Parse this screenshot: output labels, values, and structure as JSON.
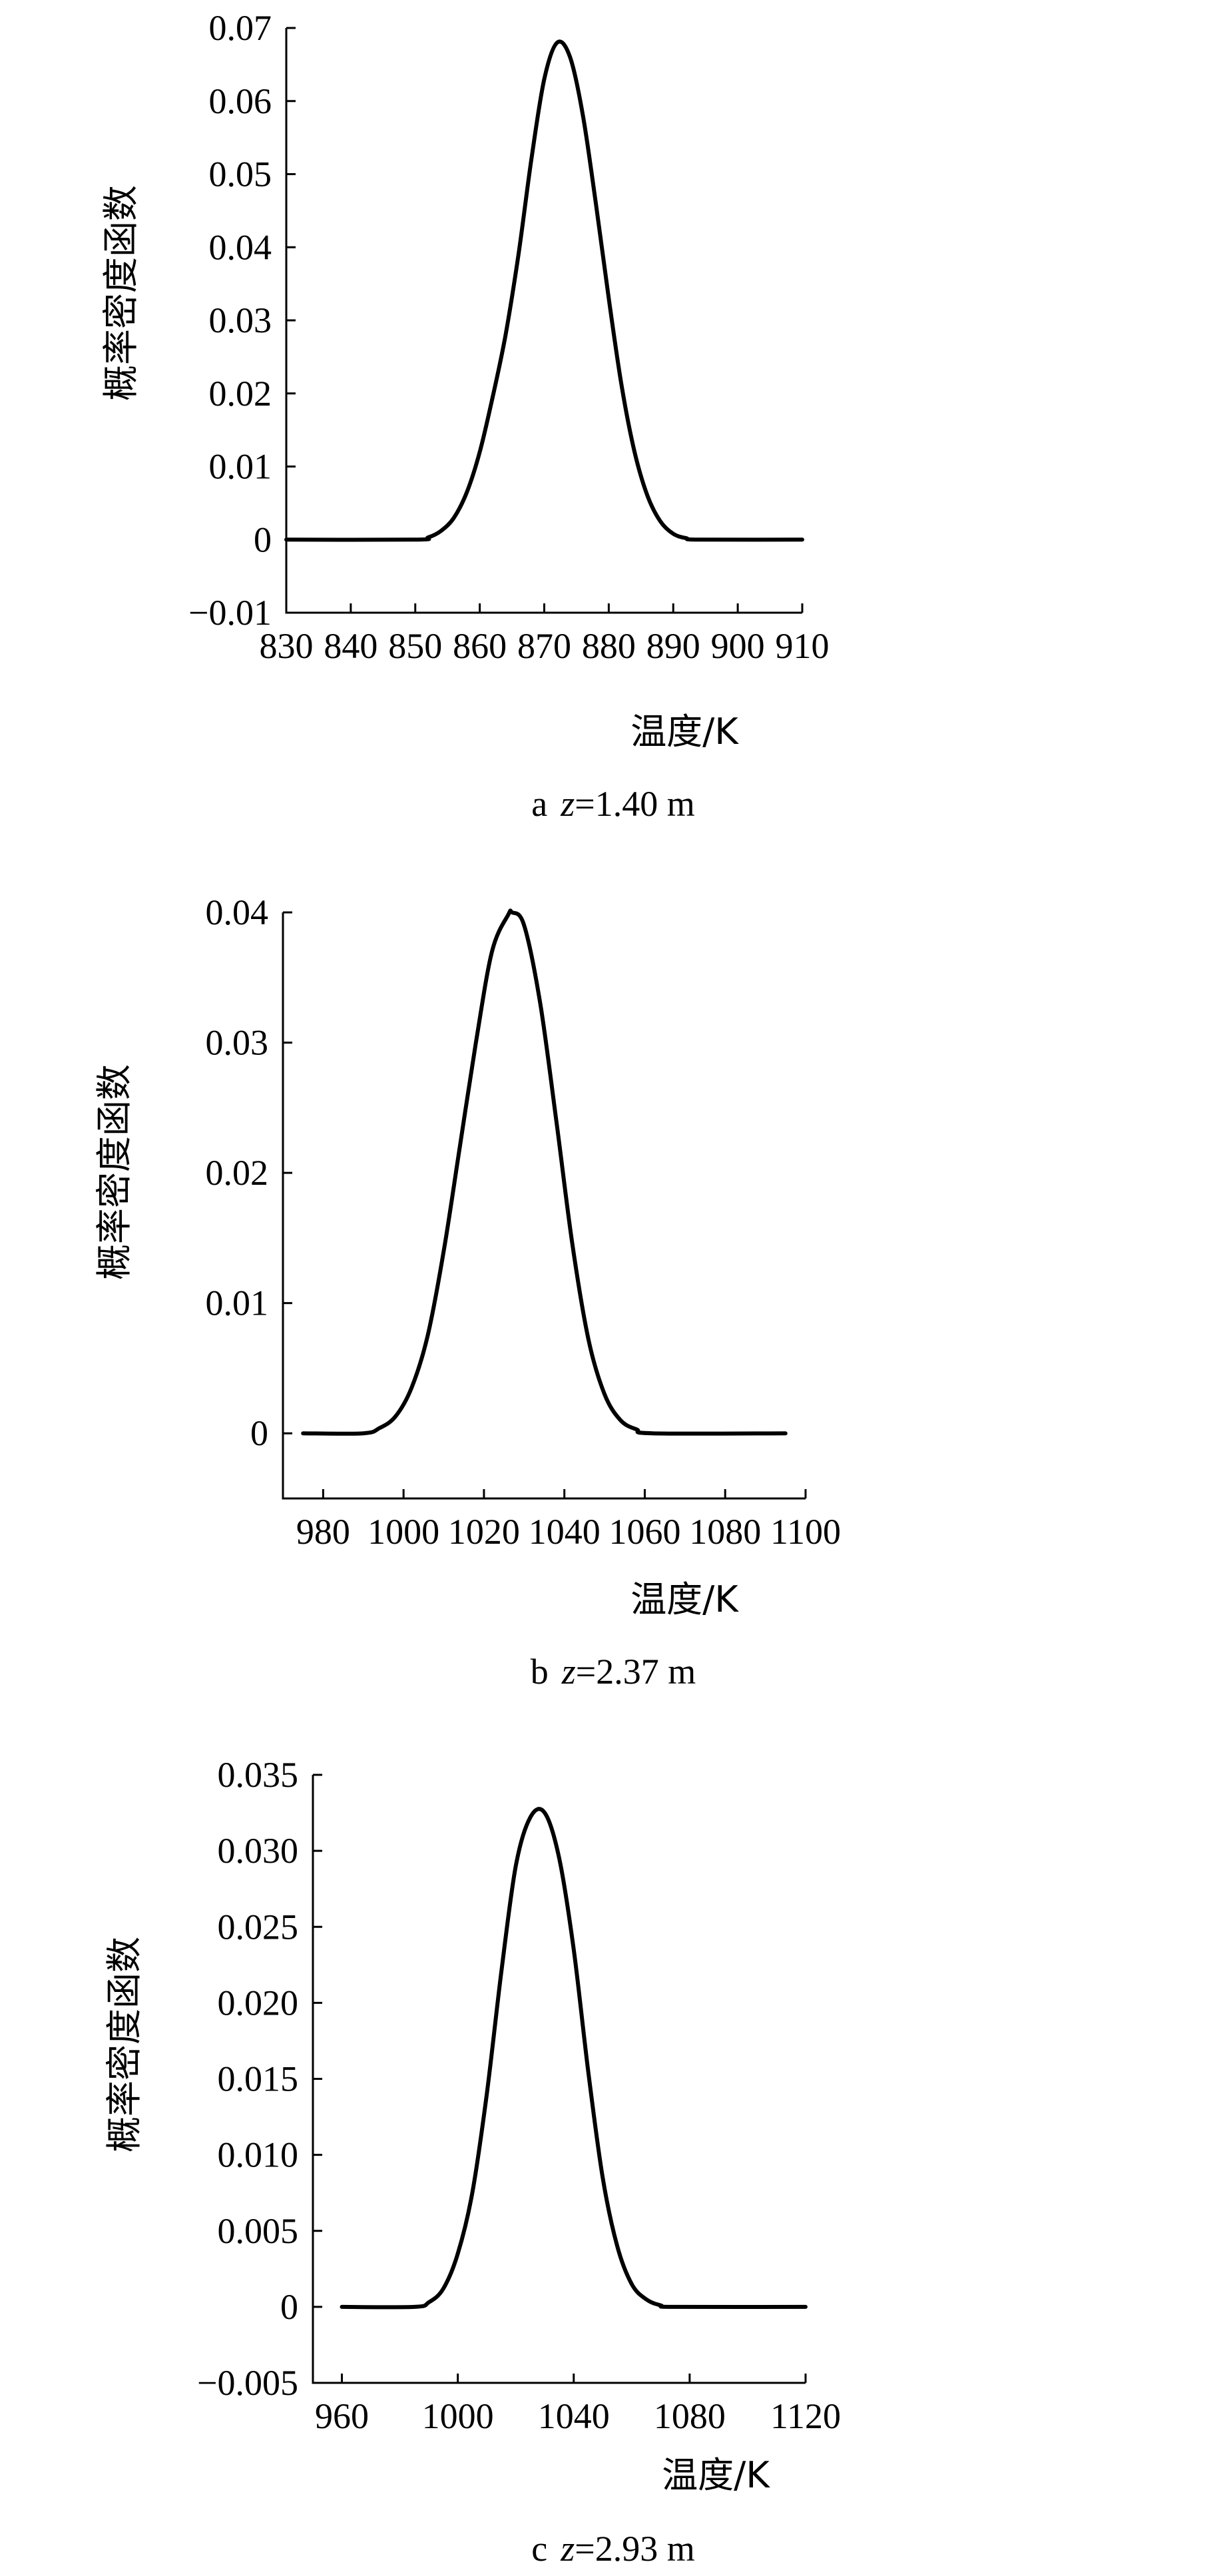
{
  "chart_data": [
    {
      "type": "line",
      "panel_letter": "a",
      "caption_var": "z",
      "caption_value": "=1.40 m",
      "xlabel": "温度/K",
      "ylabel": "概率密度函数",
      "xlim": [
        830,
        910
      ],
      "ylim": [
        -0.01,
        0.07
      ],
      "x_ticks": [
        830,
        840,
        850,
        860,
        870,
        880,
        890,
        900,
        910
      ],
      "y_ticks": [
        -0.01,
        0,
        0.01,
        0.02,
        0.03,
        0.04,
        0.05,
        0.06,
        0.07
      ],
      "x_tick_labels": [
        "830",
        "840",
        "850",
        "860",
        "870",
        "880",
        "890",
        "900",
        "910"
      ],
      "y_tick_labels": [
        "−0.01",
        "0",
        "0.01",
        "0.02",
        "0.03",
        "0.04",
        "0.05",
        "0.06",
        "0.07"
      ],
      "series": [
        {
          "x": [
            830,
            850,
            852,
            854,
            856,
            858,
            860,
            862,
            864,
            866,
            868,
            870,
            872,
            874,
            876,
            878,
            880,
            882,
            884,
            886,
            888,
            890,
            892,
            894,
            910
          ],
          "y": [
            0,
            0,
            0.0003,
            0.0012,
            0.003,
            0.0065,
            0.012,
            0.0195,
            0.028,
            0.039,
            0.052,
            0.063,
            0.068,
            0.066,
            0.058,
            0.046,
            0.033,
            0.021,
            0.012,
            0.006,
            0.0025,
            0.0008,
            0.0002,
            0,
            0
          ]
        }
      ]
    },
    {
      "type": "line",
      "panel_letter": "b",
      "caption_var": "z",
      "caption_value": "=2.37 m",
      "xlabel": "温度/K",
      "ylabel": "概率密度函数",
      "xlim": [
        970,
        1100
      ],
      "ylim": [
        -0.005,
        0.04
      ],
      "x_ticks": [
        980,
        1000,
        1020,
        1040,
        1060,
        1080,
        1100
      ],
      "y_ticks": [
        0,
        0.01,
        0.02,
        0.03,
        0.04
      ],
      "x_tick_labels": [
        "980",
        "1000",
        "1020",
        "1040",
        "1060",
        "1080",
        "1100"
      ],
      "y_tick_labels": [
        "0",
        "0.01",
        "0.02",
        "0.03",
        "0.04"
      ],
      "series": [
        {
          "x": [
            975,
            990,
            994,
            998,
            1002,
            1006,
            1010,
            1014,
            1018,
            1022,
            1026,
            1027,
            1030,
            1034,
            1038,
            1042,
            1046,
            1050,
            1054,
            1058,
            1062,
            1095
          ],
          "y": [
            0,
            0,
            0.0004,
            0.0013,
            0.0035,
            0.0075,
            0.014,
            0.022,
            0.03,
            0.037,
            0.0398,
            0.04,
            0.039,
            0.033,
            0.024,
            0.0145,
            0.0072,
            0.003,
            0.001,
            0.0003,
            0,
            0
          ]
        }
      ]
    },
    {
      "type": "line",
      "panel_letter": "c",
      "caption_var": "z",
      "caption_value": "=2.93 m",
      "xlabel": "温度/K",
      "ylabel": "概率密度函数",
      "xlim": [
        950,
        1120
      ],
      "ylim": [
        -0.005,
        0.035
      ],
      "x_ticks": [
        960,
        1000,
        1040,
        1080,
        1120
      ],
      "y_ticks": [
        -0.005,
        0,
        0.005,
        0.01,
        0.015,
        0.02,
        0.025,
        0.03,
        0.035
      ],
      "x_tick_labels": [
        "960",
        "1000",
        "1040",
        "1080",
        "1120"
      ],
      "y_tick_labels": [
        "−0.005",
        "0",
        "0.005",
        "0.010",
        "0.015",
        "0.020",
        "0.025",
        "0.030",
        "0.035"
      ],
      "series": [
        {
          "x": [
            960,
            985,
            990,
            995,
            1000,
            1005,
            1010,
            1015,
            1020,
            1025,
            1030,
            1035,
            1040,
            1045,
            1050,
            1055,
            1060,
            1065,
            1070,
            1075,
            1120
          ],
          "y": [
            0,
            0,
            0.0003,
            0.0012,
            0.0035,
            0.0075,
            0.014,
            0.022,
            0.029,
            0.0322,
            0.0325,
            0.0295,
            0.0235,
            0.0155,
            0.0085,
            0.004,
            0.0015,
            0.0005,
            0.0001,
            0,
            0
          ]
        }
      ]
    }
  ]
}
